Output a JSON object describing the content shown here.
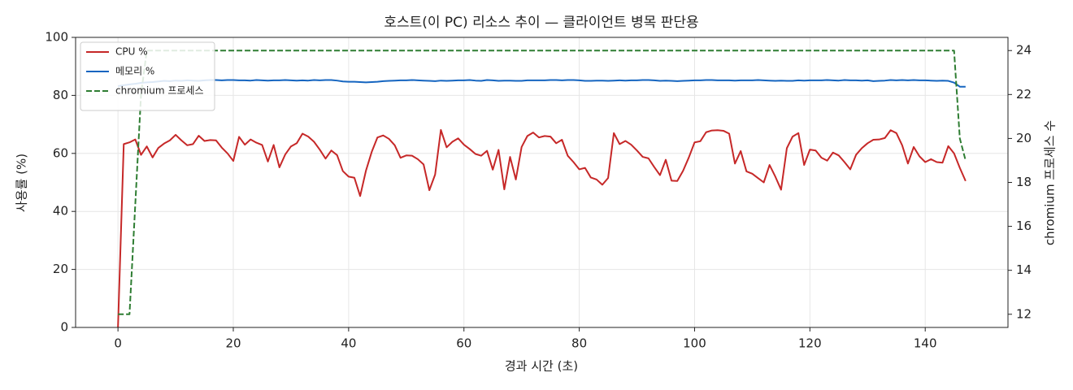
{
  "chart_data": {
    "type": "line",
    "title": "호스트(이 PC) 리소스 추이 — 클라이언트 병목 판단용",
    "x_label": "경과 시간 (초)",
    "y_label": "사용률 (%)",
    "y2_label": "chromium 프로세스 수",
    "xlim": [
      -7.35,
      154.35
    ],
    "xticks": [
      0,
      20,
      40,
      60,
      80,
      100,
      120,
      140
    ],
    "ylim": [
      0,
      100
    ],
    "yticks": [
      0,
      20,
      40,
      60,
      80,
      100
    ],
    "y2lim": [
      11.4,
      24.6
    ],
    "y2ticks": [
      12,
      14,
      16,
      18,
      20,
      22,
      24
    ],
    "grid": true,
    "legend": "upper left",
    "x": [
      0,
      1,
      2,
      3,
      4,
      5,
      6,
      7,
      8,
      9,
      10,
      11,
      12,
      13,
      14,
      15,
      16,
      17,
      18,
      19,
      20,
      21,
      22,
      23,
      24,
      25,
      26,
      27,
      28,
      29,
      30,
      31,
      32,
      33,
      34,
      35,
      36,
      37,
      38,
      39,
      40,
      41,
      42,
      43,
      44,
      45,
      46,
      47,
      48,
      49,
      50,
      51,
      52,
      53,
      54,
      55,
      56,
      57,
      58,
      59,
      60,
      61,
      62,
      63,
      64,
      65,
      66,
      67,
      68,
      69,
      70,
      71,
      72,
      73,
      74,
      75,
      76,
      77,
      78,
      79,
      80,
      81,
      82,
      83,
      84,
      85,
      86,
      87,
      88,
      89,
      90,
      91,
      92,
      93,
      94,
      95,
      96,
      97,
      98,
      99,
      100,
      101,
      102,
      103,
      104,
      105,
      106,
      107,
      108,
      109,
      110,
      111,
      112,
      113,
      114,
      115,
      116,
      117,
      118,
      119,
      120,
      121,
      122,
      123,
      124,
      125,
      126,
      127,
      128,
      129,
      130,
      131,
      132,
      133,
      134,
      135,
      136,
      137,
      138,
      139,
      140,
      141,
      142,
      143,
      144,
      145,
      146,
      147
    ],
    "series": [
      {
        "name": "CPU %",
        "color": "#c62828",
        "linestyle": "solid",
        "values": [
          0,
          63.2,
          63.8,
          64.8,
          59.5,
          62.4,
          58.6,
          61.9,
          63.4,
          64.5,
          66.4,
          64.5,
          62.8,
          63.2,
          66.1,
          64.3,
          64.6,
          64.5,
          62.0,
          60.0,
          57.4,
          65.7,
          63.0,
          64.8,
          63.7,
          62.9,
          57.2,
          62.9,
          55.2,
          59.6,
          62.4,
          63.5,
          66.8,
          65.8,
          64.0,
          61.3,
          58.2,
          61.0,
          59.4,
          53.9,
          52.0,
          51.6,
          45.3,
          54.0,
          60.5,
          65.5,
          66.2,
          65.0,
          62.8,
          58.5,
          59.3,
          59.2,
          58.0,
          56.2,
          47.3,
          52.7,
          68.1,
          62.1,
          64.0,
          65.2,
          63.0,
          61.5,
          59.8,
          59.2,
          60.9,
          54.4,
          61.2,
          47.6,
          58.8,
          51.0,
          62.2,
          66.0,
          67.2,
          65.5,
          66.0,
          65.8,
          63.5,
          64.7,
          59.2,
          57.0,
          54.5,
          55.0,
          51.7,
          51.0,
          49.2,
          51.5,
          67.0,
          63.2,
          64.3,
          63.0,
          61.0,
          58.8,
          58.3,
          55.3,
          52.5,
          57.8,
          50.6,
          50.5,
          54.0,
          58.6,
          63.8,
          64.2,
          67.3,
          67.9,
          68.0,
          67.8,
          66.8,
          56.5,
          60.8,
          53.8,
          53.0,
          51.5,
          50.0,
          56.0,
          52.0,
          47.5,
          61.8,
          65.8,
          67.0,
          56.0,
          61.3,
          61.0,
          58.5,
          57.5,
          60.3,
          59.3,
          57.0,
          54.5,
          59.5,
          61.8,
          63.5,
          64.7,
          64.8,
          65.3,
          68.0,
          67.0,
          62.8,
          56.5,
          62.2,
          59.0,
          57.0,
          58.0,
          57.0,
          56.8,
          62.5,
          60.0,
          55.0,
          50.5
        ]
      },
      {
        "name": "메모리 %",
        "color": "#1565c0",
        "linestyle": "solid",
        "values": [
          83.2,
          83.5,
          83.8,
          84.0,
          84.3,
          84.5,
          84.6,
          84.8,
          85.0,
          84.9,
          85.1,
          85.0,
          85.2,
          85.1,
          85.0,
          85.2,
          85.3,
          85.3,
          85.2,
          85.3,
          85.3,
          85.2,
          85.2,
          85.1,
          85.3,
          85.2,
          85.1,
          85.2,
          85.2,
          85.3,
          85.2,
          85.1,
          85.2,
          85.1,
          85.3,
          85.2,
          85.3,
          85.3,
          85.1,
          84.8,
          84.7,
          84.7,
          84.6,
          84.5,
          84.6,
          84.7,
          84.9,
          85.0,
          85.1,
          85.2,
          85.2,
          85.3,
          85.2,
          85.1,
          85.0,
          84.9,
          85.1,
          85.0,
          85.1,
          85.2,
          85.2,
          85.3,
          85.1,
          85.0,
          85.3,
          85.2,
          85.0,
          85.1,
          85.1,
          85.0,
          85.0,
          85.2,
          85.2,
          85.2,
          85.2,
          85.3,
          85.3,
          85.2,
          85.3,
          85.3,
          85.2,
          85.0,
          85.0,
          85.1,
          85.1,
          85.0,
          85.1,
          85.2,
          85.1,
          85.2,
          85.2,
          85.3,
          85.3,
          85.2,
          85.0,
          85.1,
          85.0,
          84.9,
          85.0,
          85.1,
          85.2,
          85.2,
          85.3,
          85.3,
          85.2,
          85.2,
          85.2,
          85.1,
          85.2,
          85.2,
          85.2,
          85.3,
          85.2,
          85.1,
          85.0,
          85.1,
          85.0,
          85.0,
          85.2,
          85.1,
          85.2,
          85.2,
          85.2,
          85.3,
          85.2,
          85.1,
          85.3,
          85.2,
          85.2,
          85.1,
          85.2,
          84.9,
          85.0,
          85.1,
          85.3,
          85.2,
          85.3,
          85.2,
          85.3,
          85.2,
          85.2,
          85.1,
          85.0,
          85.1,
          85.0,
          84.4,
          83.0,
          83.0
        ]
      },
      {
        "name": "chromium 프로세스",
        "color": "#2e7d32",
        "linestyle": "dashed",
        "axis": "y2",
        "values": [
          12,
          12,
          12,
          17,
          22,
          24,
          24,
          24,
          24,
          24,
          24,
          24,
          24,
          24,
          24,
          24,
          24,
          24,
          24,
          24,
          24,
          24,
          24,
          24,
          24,
          24,
          24,
          24,
          24,
          24,
          24,
          24,
          24,
          24,
          24,
          24,
          24,
          24,
          24,
          24,
          24,
          24,
          24,
          24,
          24,
          24,
          24,
          24,
          24,
          24,
          24,
          24,
          24,
          24,
          24,
          24,
          24,
          24,
          24,
          24,
          24,
          24,
          24,
          24,
          24,
          24,
          24,
          24,
          24,
          24,
          24,
          24,
          24,
          24,
          24,
          24,
          24,
          24,
          24,
          24,
          24,
          24,
          24,
          24,
          24,
          24,
          24,
          24,
          24,
          24,
          24,
          24,
          24,
          24,
          24,
          24,
          24,
          24,
          24,
          24,
          24,
          24,
          24,
          24,
          24,
          24,
          24,
          24,
          24,
          24,
          24,
          24,
          24,
          24,
          24,
          24,
          24,
          24,
          24,
          24,
          24,
          24,
          24,
          24,
          24,
          24,
          24,
          24,
          24,
          24,
          24,
          24,
          24,
          24,
          24,
          24,
          24,
          24,
          24,
          24,
          24,
          24,
          24,
          24,
          24,
          24,
          20,
          19
        ]
      }
    ]
  }
}
